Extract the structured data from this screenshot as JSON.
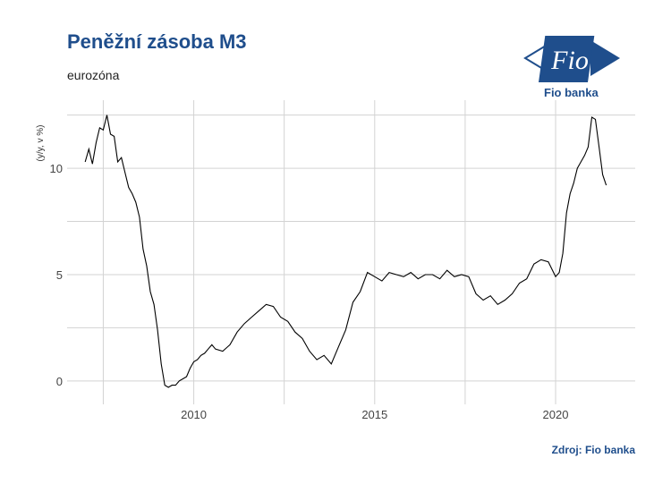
{
  "header": {
    "title": "Peněžní zásoba M3",
    "subtitle": "eurozóna",
    "source": "Zdroj: Fio banka",
    "logo_mark": "Fio",
    "logo_name": "Fio banka"
  },
  "colors": {
    "title": "#1f4e8c",
    "line": "#000000",
    "grid": "#d3d3d3",
    "logo": "#1f4e8c"
  },
  "chart_data": {
    "type": "line",
    "title": "Peněžní zásoba M3",
    "subtitle": "eurozóna",
    "ylabel": "(y/y, v %)",
    "xlabel": "",
    "xlim": [
      2006.5,
      2022.2
    ],
    "ylim": [
      -1.1,
      13.2
    ],
    "x_ticks": [
      2010,
      2015,
      2020
    ],
    "x_tick_labels": [
      "2010",
      "2015",
      "2020"
    ],
    "y_ticks": [
      0,
      5,
      10
    ],
    "y_tick_labels": [
      "0",
      "5",
      "10"
    ],
    "grid": true,
    "legend": "none",
    "series": [
      {
        "x": [
          2007.0,
          2007.1,
          2007.2,
          2007.3,
          2007.4,
          2007.5,
          2007.6,
          2007.7,
          2007.8,
          2007.9,
          2008.0,
          2008.1,
          2008.2,
          2008.3,
          2008.4,
          2008.5,
          2008.6,
          2008.7,
          2008.8,
          2008.9,
          2009.0,
          2009.1,
          2009.2,
          2009.3,
          2009.4,
          2009.5,
          2009.6,
          2009.7,
          2009.8,
          2009.9,
          2010.0,
          2010.1,
          2010.2,
          2010.3,
          2010.4,
          2010.5,
          2010.6,
          2010.8,
          2011.0,
          2011.2,
          2011.4,
          2011.6,
          2011.8,
          2012.0,
          2012.2,
          2012.4,
          2012.6,
          2012.8,
          2013.0,
          2013.2,
          2013.4,
          2013.6,
          2013.8,
          2014.0,
          2014.2,
          2014.4,
          2014.6,
          2014.8,
          2015.0,
          2015.2,
          2015.4,
          2015.6,
          2015.8,
          2016.0,
          2016.2,
          2016.4,
          2016.6,
          2016.8,
          2017.0,
          2017.2,
          2017.4,
          2017.6,
          2017.8,
          2018.0,
          2018.2,
          2018.4,
          2018.6,
          2018.8,
          2019.0,
          2019.2,
          2019.4,
          2019.6,
          2019.8,
          2020.0,
          2020.1,
          2020.2,
          2020.3,
          2020.4,
          2020.5,
          2020.6,
          2020.7,
          2020.8,
          2020.9,
          2021.0,
          2021.1,
          2021.2,
          2021.3,
          2021.4
        ],
        "y": [
          10.3,
          10.9,
          10.2,
          11.2,
          11.9,
          11.8,
          12.5,
          11.6,
          11.5,
          10.3,
          10.5,
          9.8,
          9.1,
          8.8,
          8.4,
          7.7,
          6.2,
          5.4,
          4.2,
          3.6,
          2.4,
          0.8,
          -0.2,
          -0.3,
          -0.2,
          -0.2,
          0.0,
          0.1,
          0.2,
          0.6,
          0.9,
          1.0,
          1.2,
          1.3,
          1.5,
          1.7,
          1.5,
          1.4,
          1.7,
          2.3,
          2.7,
          3.0,
          3.3,
          3.6,
          3.5,
          3.0,
          2.8,
          2.3,
          2.0,
          1.4,
          1.0,
          1.2,
          0.8,
          1.6,
          2.4,
          3.7,
          4.2,
          5.1,
          4.9,
          4.7,
          5.1,
          5.0,
          4.9,
          5.1,
          4.8,
          5.0,
          5.0,
          4.8,
          5.2,
          4.9,
          5.0,
          4.9,
          4.1,
          3.8,
          4.0,
          3.6,
          3.8,
          4.1,
          4.6,
          4.8,
          5.5,
          5.7,
          5.6,
          4.9,
          5.1,
          6.0,
          7.9,
          8.8,
          9.3,
          10.0,
          10.3,
          10.6,
          11.0,
          12.4,
          12.3,
          11.0,
          9.7,
          9.2
        ]
      }
    ]
  }
}
